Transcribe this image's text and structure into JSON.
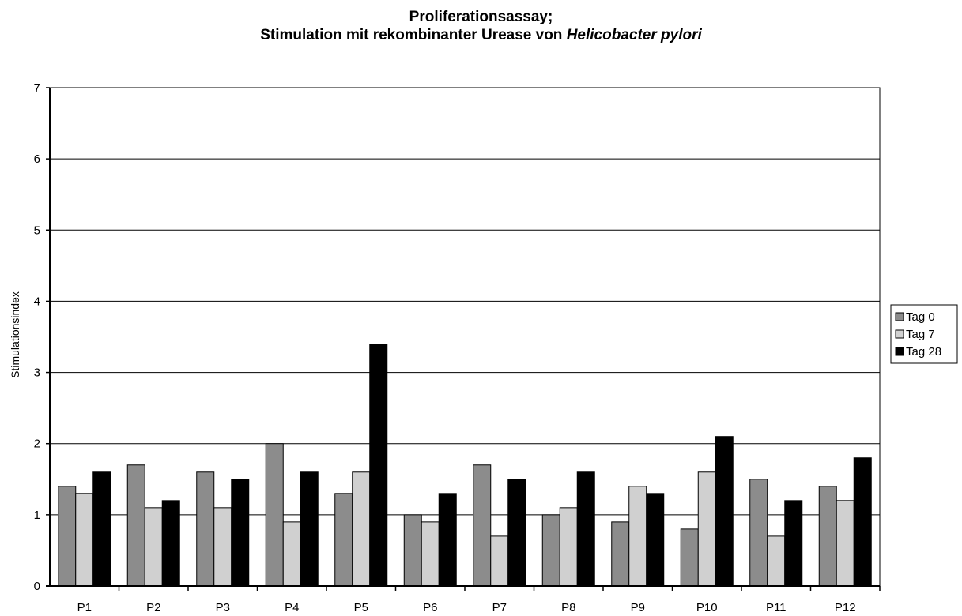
{
  "chart_data": {
    "type": "bar",
    "title_line1": "Proliferationsassay;",
    "title_line2_prefix": "Stimulation mit rekombinanter Urease von ",
    "title_line2_italic": "Helicobacter pylori",
    "ylabel": "Stimulationsindex",
    "xlabel": "",
    "ylim": [
      0,
      7
    ],
    "yticks": [
      "0",
      "1",
      "2",
      "3",
      "4",
      "5",
      "6",
      "7"
    ],
    "grid": true,
    "legend_position": "right",
    "categories": [
      "P1",
      "P2",
      "P3",
      "P4",
      "P5",
      "P6",
      "P7",
      "P8",
      "P9",
      "P10",
      "P11",
      "P12"
    ],
    "series": [
      {
        "name": "Tag 0",
        "color": "#8c8c8c",
        "values": [
          1.4,
          1.7,
          1.6,
          2.0,
          1.3,
          1.0,
          1.7,
          1.0,
          0.9,
          0.8,
          1.5,
          1.4
        ]
      },
      {
        "name": "Tag 7",
        "color": "#d0d0d0",
        "values": [
          1.3,
          1.1,
          1.1,
          0.9,
          1.6,
          0.9,
          0.7,
          1.1,
          1.4,
          1.6,
          0.7,
          1.2
        ]
      },
      {
        "name": "Tag 28",
        "color": "#000000",
        "values": [
          1.6,
          1.2,
          1.5,
          1.6,
          3.4,
          1.3,
          1.5,
          1.6,
          1.3,
          2.1,
          1.2,
          1.8
        ]
      }
    ]
  }
}
